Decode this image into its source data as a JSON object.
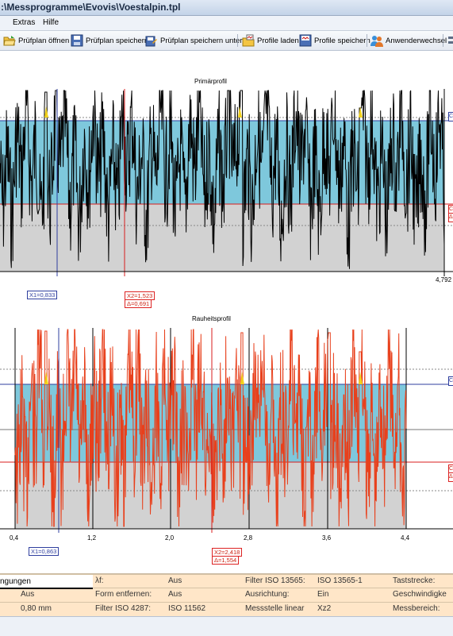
{
  "window": {
    "title": ":\\Messprogramme\\Evovis\\Voestalpin.tpl"
  },
  "menu": {
    "items": [
      "Extras",
      "Hilfe"
    ]
  },
  "toolbar": {
    "buttons": [
      {
        "label": "Prüfplan öffnen",
        "icon": "folder-open-icon"
      },
      {
        "label": "Prüfplan speichern",
        "icon": "floppy-disk-icon"
      },
      {
        "label": "Prüfplan speichern unter",
        "icon": "save-as-icon"
      },
      {
        "label": "Profile laden",
        "icon": "load-profiles-icon"
      },
      {
        "label": "Profile speichern",
        "icon": "save-profiles-icon"
      },
      {
        "label": "Anwenderwechsel",
        "icon": "user-switch-icon"
      }
    ]
  },
  "primary_plot": {
    "title": "Primärprofil",
    "x_max_label": "4,792",
    "cursor1": "X1=0,833",
    "cursor2_x": "X2=1,523",
    "cursor2_delta": "Δ=0,691",
    "right_markers": [
      "C",
      "C",
      "Δ"
    ]
  },
  "roughness_plot": {
    "title": "Rauheitsprofil",
    "x_ticks": [
      "0,4",
      "1,2",
      "2,0",
      "2,8",
      "3,6",
      "4,4"
    ],
    "cursor1": "X1=0,863",
    "cursor2_x": "X2=2,418",
    "cursor2_delta": "Δ=1,554",
    "right_markers": [
      "C",
      "C",
      "Δ"
    ]
  },
  "colors": {
    "band_fill": "#7ec8dc",
    "below_fill": "#d2d2d2",
    "peak_fill": "#f2d21c",
    "primary_trace": "#000000",
    "roughness_trace": "#e8401c",
    "cursor_blue": "#2f3f9f",
    "cursor_red": "#d81e1e",
    "params_bg": "#ffe6c8"
  },
  "params": {
    "col1": {
      "header": "ngungen",
      "v1": "Aus",
      "v2": "0,80 mm"
    },
    "col2": {
      "l1": "λf:",
      "v1": "Aus",
      "l2": "Form entfernen:",
      "v2": "Aus",
      "l3": "Filter ISO 4287:",
      "v3": "ISO 11562"
    },
    "col3": {
      "l1": "Filter ISO 13565:",
      "v1": "ISO 13565-1",
      "l2": "Ausrichtung:",
      "v2": "Ein",
      "l3": "Messstelle linear",
      "v3": "Xz2"
    },
    "col4": {
      "l1": "Taststrecke:",
      "l2": "Geschwindigke",
      "l3": "Messbereich:"
    }
  }
}
